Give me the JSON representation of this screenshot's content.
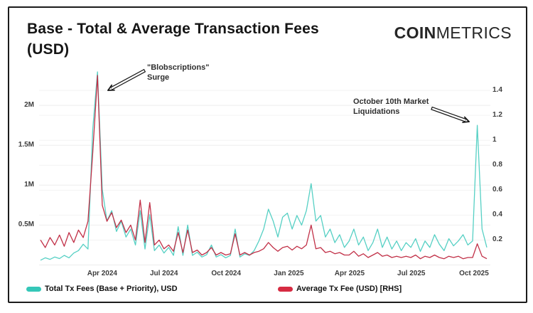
{
  "header": {
    "title_line1": "Base - Total & Average Transaction Fees",
    "title_line2": "(USD)",
    "logo_bold": "COIN",
    "logo_light": "METRICS"
  },
  "legend": {
    "items": [
      {
        "label": "Total Tx Fees (Base + Priority), USD",
        "color": "#35c7b8"
      },
      {
        "label": "Average Tx Fee (USD) [RHS]",
        "color": "#d62b42"
      }
    ]
  },
  "chart_data": {
    "type": "line",
    "title": "Base - Total & Average Transaction Fees (USD)",
    "x_start": "Jan 2024",
    "x_end": "Oct 2025",
    "interval": "weekly",
    "grid": true,
    "legend_position": "bottom",
    "xticks": [
      {
        "label": "Apr 2024",
        "week": 13
      },
      {
        "label": "Jul 2024",
        "week": 26
      },
      {
        "label": "Oct 2024",
        "week": 39.1
      },
      {
        "label": "Jan 2025",
        "week": 52.3
      },
      {
        "label": "Apr 2025",
        "week": 65.1
      },
      {
        "label": "Jul 2025",
        "week": 78.1
      },
      {
        "label": "Oct 2025",
        "week": 91.3
      }
    ],
    "left_axis": {
      "title": "Total Tx Fees (million USD)",
      "ylim": [
        0,
        2.5
      ],
      "ticks": [
        {
          "label": "0.5M",
          "value": 0.5
        },
        {
          "label": "1M",
          "value": 1.0
        },
        {
          "label": "1.5M",
          "value": 1.5
        },
        {
          "label": "2M",
          "value": 2.0
        }
      ]
    },
    "right_axis": {
      "title": "Average Tx Fee (USD)",
      "ylim": [
        0,
        1.6
      ],
      "ticks": [
        {
          "label": "0.2",
          "value": 0.2
        },
        {
          "label": "0.4",
          "value": 0.4
        },
        {
          "label": "0.6",
          "value": 0.6
        },
        {
          "label": "0.8",
          "value": 0.8
        },
        {
          "label": "1",
          "value": 1.0
        },
        {
          "label": "1.2",
          "value": 1.2
        },
        {
          "label": "1.4",
          "value": 1.4
        }
      ]
    },
    "series": [
      {
        "name": "Total Tx Fees (Base + Priority), USD",
        "axis": "left",
        "unit": "million USD",
        "color": "#56d0c4",
        "values": [
          0.06,
          0.09,
          0.07,
          0.1,
          0.08,
          0.12,
          0.09,
          0.15,
          0.18,
          0.26,
          0.2,
          1.7,
          2.42,
          0.95,
          0.55,
          0.68,
          0.42,
          0.55,
          0.35,
          0.45,
          0.25,
          0.68,
          0.2,
          0.63,
          0.18,
          0.25,
          0.15,
          0.22,
          0.12,
          0.48,
          0.12,
          0.5,
          0.12,
          0.16,
          0.1,
          0.13,
          0.25,
          0.1,
          0.13,
          0.09,
          0.12,
          0.45,
          0.1,
          0.14,
          0.12,
          0.18,
          0.3,
          0.45,
          0.7,
          0.55,
          0.35,
          0.6,
          0.65,
          0.45,
          0.62,
          0.5,
          0.68,
          1.02,
          0.55,
          0.62,
          0.35,
          0.45,
          0.28,
          0.38,
          0.22,
          0.3,
          0.45,
          0.25,
          0.35,
          0.18,
          0.28,
          0.45,
          0.22,
          0.35,
          0.2,
          0.3,
          0.18,
          0.28,
          0.22,
          0.33,
          0.17,
          0.3,
          0.22,
          0.38,
          0.26,
          0.18,
          0.33,
          0.24,
          0.3,
          0.38,
          0.25,
          0.3,
          1.75,
          0.45,
          0.22
        ]
      },
      {
        "name": "Average Tx Fee (USD) [RHS]",
        "axis": "right",
        "unit": "USD",
        "color": "#c13047",
        "values": [
          0.2,
          0.14,
          0.22,
          0.16,
          0.24,
          0.15,
          0.26,
          0.18,
          0.28,
          0.22,
          0.35,
          0.9,
          1.52,
          0.48,
          0.35,
          0.42,
          0.3,
          0.36,
          0.26,
          0.32,
          0.2,
          0.52,
          0.18,
          0.5,
          0.16,
          0.2,
          0.13,
          0.16,
          0.11,
          0.26,
          0.1,
          0.28,
          0.1,
          0.12,
          0.08,
          0.1,
          0.14,
          0.08,
          0.1,
          0.08,
          0.09,
          0.25,
          0.08,
          0.1,
          0.08,
          0.1,
          0.11,
          0.13,
          0.18,
          0.14,
          0.11,
          0.14,
          0.15,
          0.12,
          0.15,
          0.13,
          0.16,
          0.32,
          0.13,
          0.14,
          0.1,
          0.11,
          0.09,
          0.1,
          0.08,
          0.08,
          0.11,
          0.07,
          0.09,
          0.06,
          0.08,
          0.1,
          0.07,
          0.08,
          0.06,
          0.07,
          0.06,
          0.07,
          0.06,
          0.08,
          0.05,
          0.07,
          0.06,
          0.08,
          0.06,
          0.05,
          0.07,
          0.06,
          0.07,
          0.05,
          0.06,
          0.06,
          0.17,
          0.07,
          0.05
        ]
      }
    ],
    "annotations": [
      {
        "line1": "\"Blobscriptions\"",
        "line2": "Surge",
        "points_to": "Mar 2024 spike (~2.4M total / ~1.5 avg)"
      },
      {
        "line1": "October 10th Market",
        "line2": "Liquidations",
        "points_to": "Oct 2025 spike (~1.75M total)"
      }
    ]
  }
}
